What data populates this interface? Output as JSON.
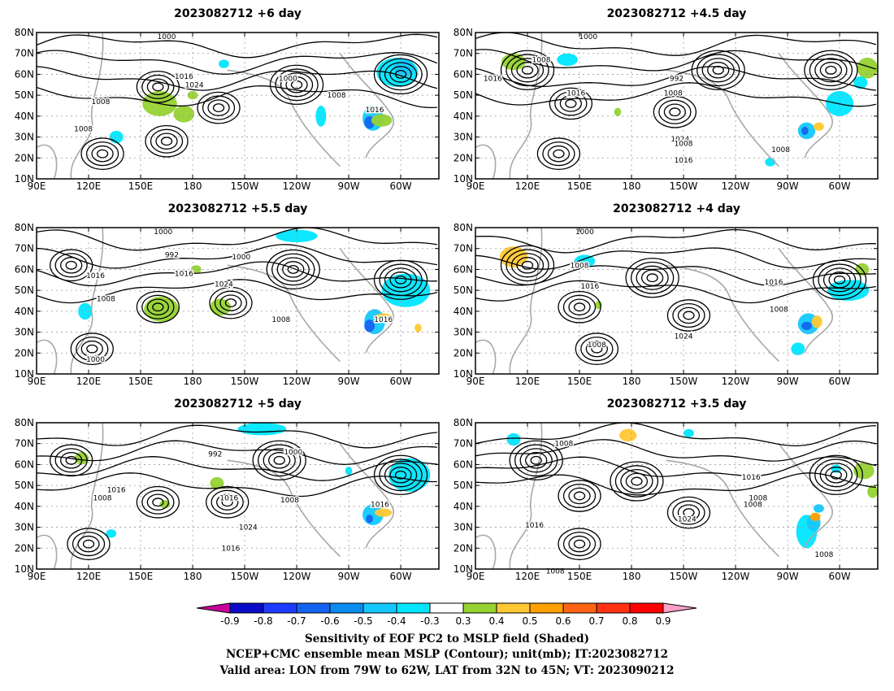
{
  "panels": [
    {
      "title": "2023082712  +6 day",
      "contour_labels": [
        "1000",
        "1016",
        "1024",
        "1000",
        "1008",
        "1008",
        "1016",
        "1008"
      ]
    },
    {
      "title": "2023082712  +4.5 day",
      "contour_labels": [
        "1000",
        "1008",
        "1016",
        "992",
        "1016",
        "1008",
        "1024",
        "1008",
        "1016",
        "1008"
      ]
    },
    {
      "title": "2023082712  +5.5 day",
      "contour_labels": [
        "1000",
        "1016",
        "992",
        "1000",
        "1016",
        "1024",
        "1008",
        "1008",
        "1016",
        "1000"
      ]
    },
    {
      "title": "2023082712  +4 day",
      "contour_labels": [
        "1000",
        "1008",
        "1016",
        "1016",
        "1008",
        "1024",
        "1008"
      ]
    },
    {
      "title": "2023082712  +5 day",
      "contour_labels": [
        "992",
        "1000",
        "1016",
        "1016",
        "1008",
        "1008",
        "1016",
        "1024",
        "1016"
      ]
    },
    {
      "title": "2023082712  +3.5 day",
      "contour_labels": [
        "1008",
        "1016",
        "1008",
        "1008",
        "1016",
        "1024",
        "1008",
        "1008"
      ]
    }
  ],
  "axes": {
    "x_ticks": [
      "90E",
      "120E",
      "150E",
      "180",
      "150W",
      "120W",
      "90W",
      "60W"
    ],
    "y_ticks": [
      "10N",
      "20N",
      "30N",
      "40N",
      "50N",
      "60N",
      "70N",
      "80N"
    ],
    "lon_range": [
      90,
      322
    ],
    "lat_range": [
      10,
      80
    ]
  },
  "colorbar": {
    "labels": [
      "-0.9",
      "-0.8",
      "-0.7",
      "-0.6",
      "-0.5",
      "-0.4",
      "-0.3",
      "0.3",
      "0.4",
      "0.5",
      "0.6",
      "0.7",
      "0.8",
      "0.9"
    ],
    "colors": [
      "#0a0ac8",
      "#1e3cff",
      "#1464f0",
      "#0a8cf0",
      "#14c8ff",
      "#00e6ff",
      "#ffffff",
      "#96d232",
      "#ffc832",
      "#ffa000",
      "#ff6414",
      "#ff3214",
      "#ff0000"
    ],
    "low_end": "#c8009b",
    "high_end": "#ffa0c8"
  },
  "caption": [
    "Sensitivity of EOF PC2 to MSLP field (Shaded)",
    "NCEP+CMC ensemble mean MSLP (Contour); unit(mb); IT:2023082712",
    "Valid area: LON from 79W to 62W, LAT from 32N to 45N; VT: 2023090212"
  ]
}
